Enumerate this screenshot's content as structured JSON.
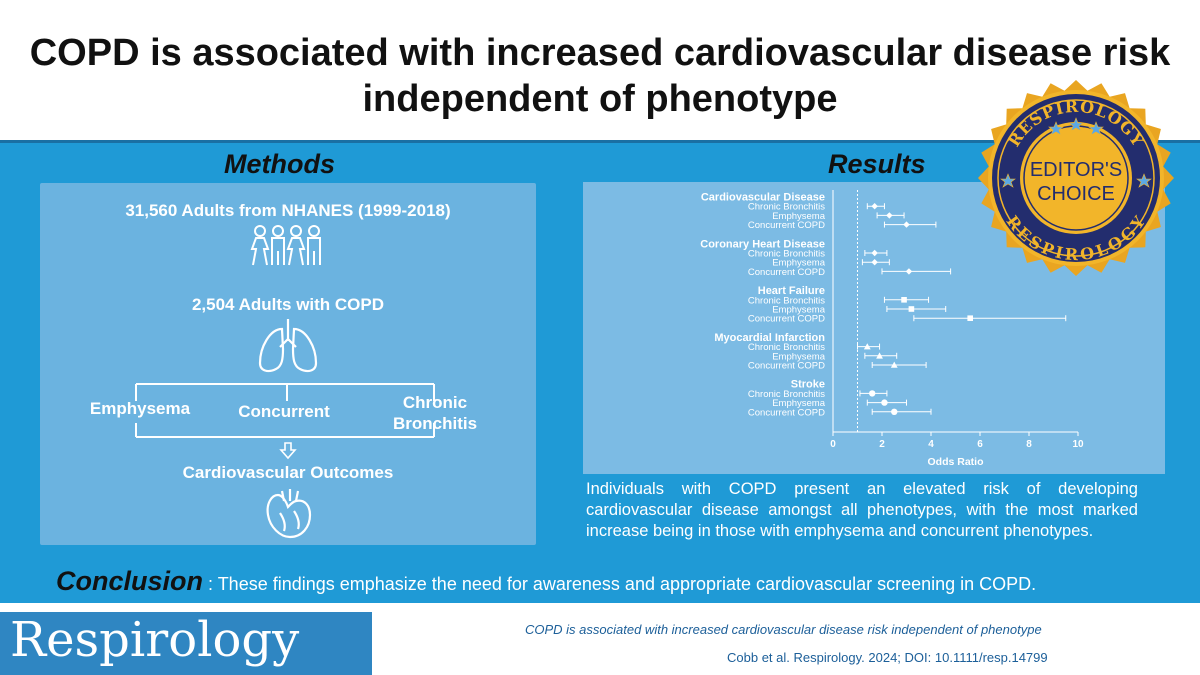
{
  "title": "COPD is associated with increased cardiovascular disease risk independent of phenotype",
  "methods": {
    "heading": "Methods",
    "population": "31,560 Adults from NHANES (1999-2018)",
    "copd_group": "2,504 Adults with COPD",
    "phenotypes": [
      "Emphysema",
      "Concurrent",
      "Chronic",
      "Bronchitis"
    ],
    "outcome": "Cardiovascular Outcomes",
    "icons": [
      "people-icon",
      "lungs-icon",
      "arrow-down-icon",
      "heart-icon"
    ]
  },
  "results": {
    "heading": "Results",
    "summary": "Individuals with COPD present an elevated risk of developing cardiovascular disease amongst all phenotypes, with the most marked increase being in those with emphysema and concurrent phenotypes."
  },
  "conclusion": {
    "heading": "Conclusion",
    "separator": " : ",
    "text": "These findings emphasize the need for awareness and appropriate cardiovascular screening in COPD."
  },
  "badge": {
    "top_text": "RESPIROLOGY",
    "line1": "EDITOR'S",
    "line2": "CHOICE",
    "bottom_text": "RESPIROLOGY"
  },
  "footer": {
    "journal": "Respirology",
    "article_title": "COPD is associated with increased cardiovascular disease risk independent of phenotype",
    "citation": "Cobb et al. Respirology. 2024; DOI: 10.1111/resp.14799"
  },
  "colors": {
    "panel_bg": "#1f9ad6",
    "methods_box": "#6bb3e0",
    "results_box": "#7cbbe4",
    "badge_gold": "#e9a521",
    "badge_navy": "#232d6e",
    "footer_text": "#1c5f99"
  },
  "chart_data": {
    "type": "forest",
    "xlabel": "Odds Ratio",
    "xlim": [
      0,
      10
    ],
    "xticks": [
      0,
      2,
      4,
      6,
      8,
      10
    ],
    "reference_line": 1,
    "groups": [
      {
        "name": "Cardiovascular  Disease",
        "marker": "diamond",
        "rows": [
          {
            "label": "Chronic Bronchitis",
            "or": 1.7,
            "lo": 1.4,
            "hi": 2.1
          },
          {
            "label": "Emphysema",
            "or": 2.3,
            "lo": 1.8,
            "hi": 2.9
          },
          {
            "label": "Concurrent COPD",
            "or": 3.0,
            "lo": 2.1,
            "hi": 4.2
          }
        ]
      },
      {
        "name": "Coronary Heart Disease",
        "marker": "diamond",
        "rows": [
          {
            "label": "Chronic Bronchitis",
            "or": 1.7,
            "lo": 1.3,
            "hi": 2.2
          },
          {
            "label": "Emphysema",
            "or": 1.7,
            "lo": 1.2,
            "hi": 2.3
          },
          {
            "label": "Concurrent COPD",
            "or": 3.1,
            "lo": 2.0,
            "hi": 4.8
          }
        ]
      },
      {
        "name": "Heart Failure",
        "marker": "square",
        "rows": [
          {
            "label": "Chronic Bronchitis",
            "or": 2.9,
            "lo": 2.1,
            "hi": 3.9
          },
          {
            "label": "Emphysema",
            "or": 3.2,
            "lo": 2.2,
            "hi": 4.6
          },
          {
            "label": "Concurrent COPD",
            "or": 5.6,
            "lo": 3.3,
            "hi": 9.5
          }
        ]
      },
      {
        "name": "Myocardial Infarction",
        "marker": "triangle",
        "rows": [
          {
            "label": "Chronic Bronchitis",
            "or": 1.4,
            "lo": 1.0,
            "hi": 1.9
          },
          {
            "label": "Emphysema",
            "or": 1.9,
            "lo": 1.3,
            "hi": 2.6
          },
          {
            "label": "Concurrent COPD",
            "or": 2.5,
            "lo": 1.6,
            "hi": 3.8
          }
        ]
      },
      {
        "name": "Stroke",
        "marker": "circle",
        "rows": [
          {
            "label": "Chronic Bronchitis",
            "or": 1.6,
            "lo": 1.1,
            "hi": 2.2
          },
          {
            "label": "Emphysema",
            "or": 2.1,
            "lo": 1.4,
            "hi": 3.0
          },
          {
            "label": "Concurrent COPD",
            "or": 2.5,
            "lo": 1.6,
            "hi": 4.0
          }
        ]
      }
    ]
  }
}
